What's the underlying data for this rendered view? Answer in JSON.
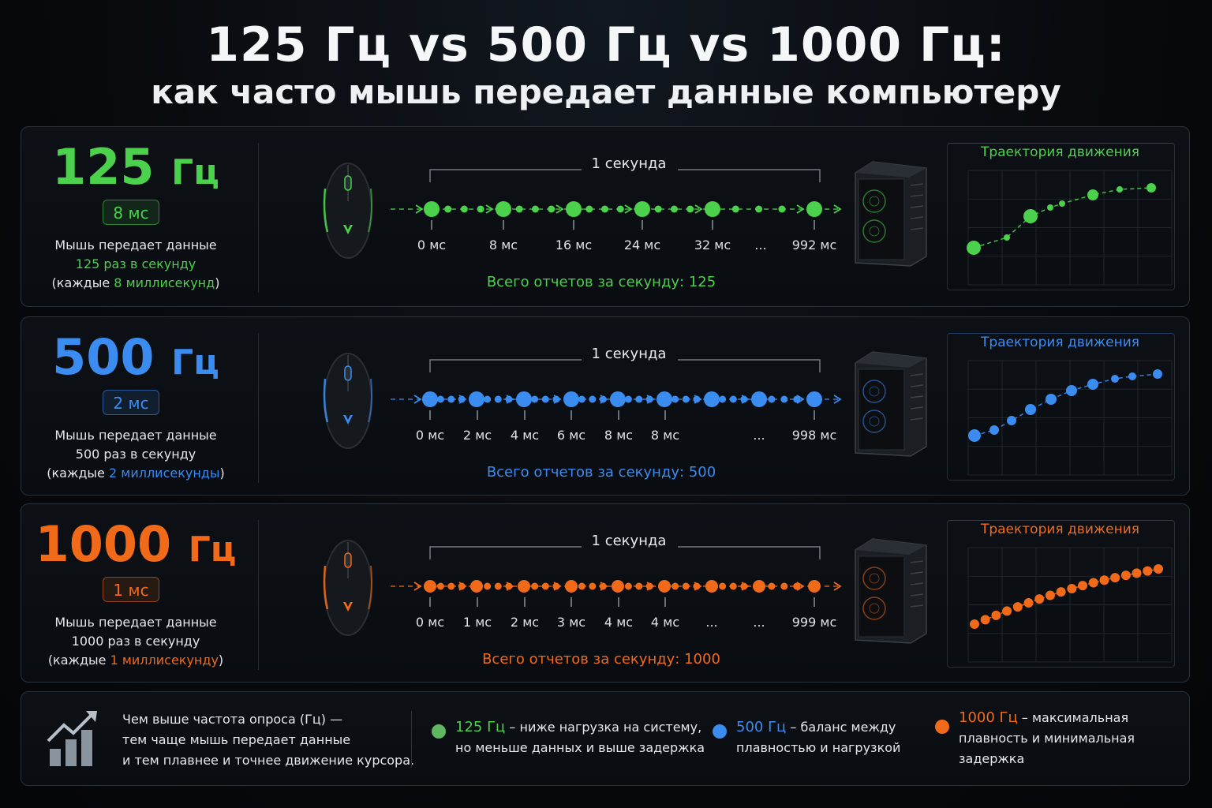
{
  "header": {
    "title": "125 Гц vs 500 Гц vs 1000 Гц:",
    "subtitle": "как часто мышь передает данные компьютеру"
  },
  "rows": [
    {
      "id": "125",
      "color": "#4bd14b",
      "hz_number": "125",
      "hz_unit": "Гц",
      "badge": "8 мс",
      "desc_line1": "Мышь передает данные",
      "desc_line2": "125 раз в секунду",
      "desc_line3_prefix": "(каждые ",
      "desc_line3_highlight": "8 миллисекунд",
      "desc_line3_suffix": ")",
      "second_label": "1 секунда",
      "ticks": [
        "0 мс",
        "8 мс",
        "16 мс",
        "24 мс",
        "32 мс",
        "...",
        "992 мс"
      ],
      "total": "Всего отчетов за секунду: 125",
      "trajectory_title": "Траектория движения",
      "report_rate_hz": 125
    },
    {
      "id": "500",
      "color": "#3a8cf0",
      "hz_number": "500",
      "hz_unit": "Гц",
      "badge": "2 мс",
      "desc_line1": "Мышь передает данные",
      "desc_line2": "500 раз в секунду",
      "desc_line3_prefix": "(каждые ",
      "desc_line3_highlight": "2 миллисекунды",
      "desc_line3_suffix": ")",
      "second_label": "1 секунда",
      "ticks": [
        "0 мс",
        "2 мс",
        "4 мс",
        "6 мс",
        "8 мс",
        "8 мс",
        "...",
        "998 мс"
      ],
      "total": "Всего отчетов за секунду: 500",
      "trajectory_title": "Траектория движения",
      "report_rate_hz": 500
    },
    {
      "id": "1000",
      "color": "#f06a1a",
      "hz_number": "1000",
      "hz_unit": "Гц",
      "badge": "1 мс",
      "desc_line1": "Мышь передает данные",
      "desc_line2": "1000 раз в секунду",
      "desc_line3_prefix": "(каждые ",
      "desc_line3_highlight": "1 миллисекунду",
      "desc_line3_suffix": ")",
      "second_label": "1 секунда",
      "ticks": [
        "0 мс",
        "1 мс",
        "2 мс",
        "3 мс",
        "4 мс",
        "4 мс",
        "...",
        "...",
        "999 мс"
      ],
      "total": "Всего отчетов за секунду: 1000",
      "trajectory_title": "Траектория движения",
      "report_rate_hz": 1000
    }
  ],
  "summary": {
    "main_line1": "Чем выше частота опроса (Гц) —",
    "main_line2": "тем чаще мышь передает данные",
    "main_line3": "и тем плавнее и точнее движение курсора.",
    "items": [
      {
        "color": "#4bd14b",
        "hz": "125 Гц",
        "line1_rest": " – ниже нагрузка на систему,",
        "line2": "но меньше данных и выше задержка"
      },
      {
        "color": "#3a8cf0",
        "hz": "500 Гц",
        "line1_rest": " – баланс между",
        "line2": "плавностью и нагрузкой"
      },
      {
        "color": "#f06a1a",
        "hz": "1000 Гц",
        "line1_rest": " – максимальная",
        "line2": "плавность и минимальная",
        "line3": "задержка"
      }
    ]
  }
}
